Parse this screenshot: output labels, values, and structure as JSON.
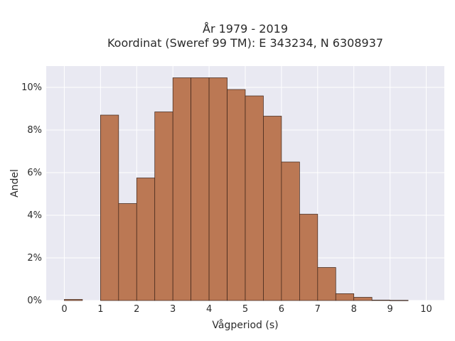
{
  "chart_data": {
    "type": "bar",
    "title": "År 1979 - 2019",
    "subtitle": "Koordinat (Sweref 99 TM): E 343234, N 6308937",
    "xlabel": "Vågperiod (s)",
    "ylabel": "Andel",
    "xlim": [
      -0.5,
      10.5
    ],
    "ylim": [
      0,
      0.11
    ],
    "x_ticks": [
      0,
      1,
      2,
      3,
      4,
      5,
      6,
      7,
      8,
      9,
      10
    ],
    "x_tick_labels": [
      "0",
      "1",
      "2",
      "3",
      "4",
      "5",
      "6",
      "7",
      "8",
      "9",
      "10"
    ],
    "y_ticks": [
      0,
      0.02,
      0.04,
      0.06,
      0.08,
      0.1
    ],
    "y_tick_labels": [
      "0%",
      "2%",
      "4%",
      "6%",
      "8%",
      "10%"
    ],
    "bin_width": 0.5,
    "bins": [
      {
        "x0": 0.0,
        "x1": 0.5,
        "value": 0.0005
      },
      {
        "x0": 0.5,
        "x1": 1.0,
        "value": 0.0
      },
      {
        "x0": 1.0,
        "x1": 1.5,
        "value": 0.087
      },
      {
        "x0": 1.5,
        "x1": 2.0,
        "value": 0.0455
      },
      {
        "x0": 2.0,
        "x1": 2.5,
        "value": 0.0575
      },
      {
        "x0": 2.5,
        "x1": 3.0,
        "value": 0.0885
      },
      {
        "x0": 3.0,
        "x1": 3.5,
        "value": 0.1045
      },
      {
        "x0": 3.5,
        "x1": 4.0,
        "value": 0.1045
      },
      {
        "x0": 4.0,
        "x1": 4.5,
        "value": 0.1045
      },
      {
        "x0": 4.5,
        "x1": 5.0,
        "value": 0.099
      },
      {
        "x0": 5.0,
        "x1": 5.5,
        "value": 0.096
      },
      {
        "x0": 5.5,
        "x1": 6.0,
        "value": 0.0865
      },
      {
        "x0": 6.0,
        "x1": 6.5,
        "value": 0.065
      },
      {
        "x0": 6.5,
        "x1": 7.0,
        "value": 0.0405
      },
      {
        "x0": 7.0,
        "x1": 7.5,
        "value": 0.0155
      },
      {
        "x0": 7.5,
        "x1": 8.0,
        "value": 0.0032
      },
      {
        "x0": 8.0,
        "x1": 8.5,
        "value": 0.0015
      },
      {
        "x0": 8.5,
        "x1": 9.0,
        "value": 0.0002
      },
      {
        "x0": 9.0,
        "x1": 9.5,
        "value": 0.0001
      }
    ],
    "grid": true,
    "legend": "none",
    "colors": {
      "bar_fill": "#bb7854",
      "bar_stroke": "#3a2218",
      "plot_background": "#e9e9f2",
      "grid": "#ffffff"
    }
  }
}
